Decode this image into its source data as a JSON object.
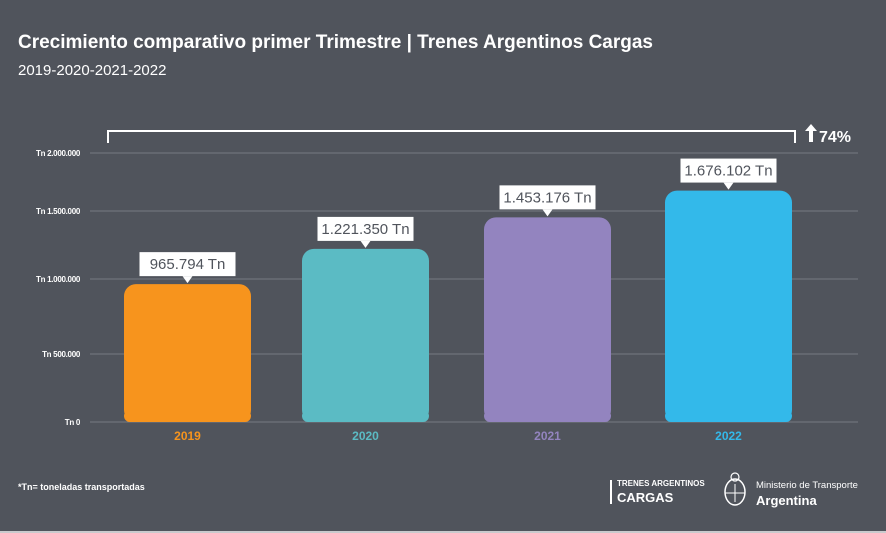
{
  "title": "Crecimiento comparativo primer Trimestre | Trenes Argentinos Cargas",
  "subtitle": "2019-2020-2021-2022",
  "footnote": "*Tn= toneladas transportadas",
  "logos": {
    "brand_line1": "TRENES ARGENTINOS",
    "brand_line2": "CARGAS",
    "ministry_line1": "Ministerio de Transporte",
    "ministry_line2": "Argentina"
  },
  "chart_data": {
    "type": "bar",
    "categories": [
      "2019",
      "2020",
      "2021",
      "2022"
    ],
    "values": [
      965794,
      1221350,
      1453176,
      1676102
    ],
    "data_labels": [
      "965.794 Tn",
      "1.221.350 Tn",
      "1.453.176 Tn",
      "1.676.102 Tn"
    ],
    "colors": [
      "#f7941d",
      "#5bbbc4",
      "#9384bf",
      "#33b9ea"
    ],
    "yticks": [
      0,
      500000,
      1000000,
      1500000,
      2000000
    ],
    "ytick_labels": [
      "Tn 0",
      "Tn 500.000",
      "Tn 1.000.000",
      "Tn 1.500.000",
      "Tn 2.000.000"
    ],
    "ylim": [
      0,
      2000000
    ],
    "grid": true,
    "annotation": {
      "text": "74%",
      "icon": "arrow-up-icon"
    }
  }
}
